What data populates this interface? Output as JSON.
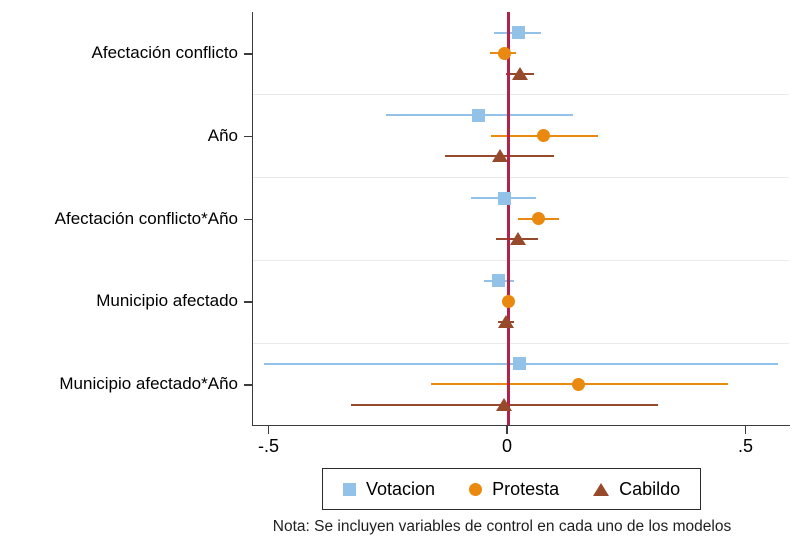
{
  "chart_data": {
    "type": "scatter",
    "subtype": "coefficient-forest-plot",
    "title": "",
    "xlabel": "",
    "ylabel": "",
    "xlim": [
      -0.535,
      0.592
    ],
    "grid": "group-separators-only",
    "legend_position": "bottom-center",
    "x_ticks": [
      {
        "label": "-.5",
        "value": -0.5
      },
      {
        "label": "0",
        "value": 0
      },
      {
        "label": ".5",
        "value": 0.5
      }
    ],
    "zero_reference_line": {
      "value": 0,
      "color": "#b2234b"
    },
    "colors": {
      "axis": "#3c3c3c",
      "separator_grid": "#eaeaea",
      "votacion_blue": "#92c2e7",
      "protesta_orange": "#e9890f",
      "cabildo_brown": "#96492b"
    },
    "series_meta": [
      {
        "name": "Votacion",
        "marker": "square",
        "color": "#92c2e7"
      },
      {
        "name": "Protesta",
        "marker": "circle",
        "color": "#e9890f"
      },
      {
        "name": "Cabildo",
        "marker": "triangle",
        "color": "#96492b"
      }
    ],
    "groups": [
      {
        "label": "Afectación conflicto",
        "estimates": [
          {
            "series": "Votacion",
            "value": 0.021,
            "ci": [
              -0.029,
              0.069
            ]
          },
          {
            "series": "Protesta",
            "value": -0.008,
            "ci": [
              -0.038,
              0.017
            ]
          },
          {
            "series": "Cabildo",
            "value": 0.025,
            "ci": [
              -0.004,
              0.055
            ]
          }
        ]
      },
      {
        "label": "Año",
        "estimates": [
          {
            "series": "Votacion",
            "value": -0.061,
            "ci": [
              -0.256,
              0.136
            ]
          },
          {
            "series": "Protesta",
            "value": 0.075,
            "ci": [
              -0.036,
              0.189
            ]
          },
          {
            "series": "Cabildo",
            "value": -0.017,
            "ci": [
              -0.132,
              0.096
            ]
          }
        ]
      },
      {
        "label": "Afectación conflicto*Año",
        "estimates": [
          {
            "series": "Votacion",
            "value": -0.008,
            "ci": [
              -0.078,
              0.059
            ]
          },
          {
            "series": "Protesta",
            "value": 0.063,
            "ci": [
              0.021,
              0.107
            ]
          },
          {
            "series": "Cabildo",
            "value": 0.021,
            "ci": [
              -0.025,
              0.063
            ]
          }
        ]
      },
      {
        "label": "Municipio afectado",
        "estimates": [
          {
            "series": "Votacion",
            "value": -0.019,
            "ci": [
              -0.05,
              0.013
            ]
          },
          {
            "series": "Protesta",
            "value": 0.001,
            "ci": [
              -0.008,
              0.01
            ]
          },
          {
            "series": "Cabildo",
            "value": -0.004,
            "ci": [
              -0.021,
              0.013
            ]
          }
        ]
      },
      {
        "label": "Municipio afectado*Año",
        "estimates": [
          {
            "series": "Votacion",
            "value": 0.025,
            "ci": [
              -0.512,
              0.566
            ]
          },
          {
            "series": "Protesta",
            "value": 0.147,
            "ci": [
              -0.161,
              0.461
            ]
          },
          {
            "series": "Cabildo",
            "value": -0.008,
            "ci": [
              -0.329,
              0.314
            ]
          }
        ]
      }
    ],
    "note": "Nota: Se incluyen variables de control en cada uno de los modelos"
  }
}
